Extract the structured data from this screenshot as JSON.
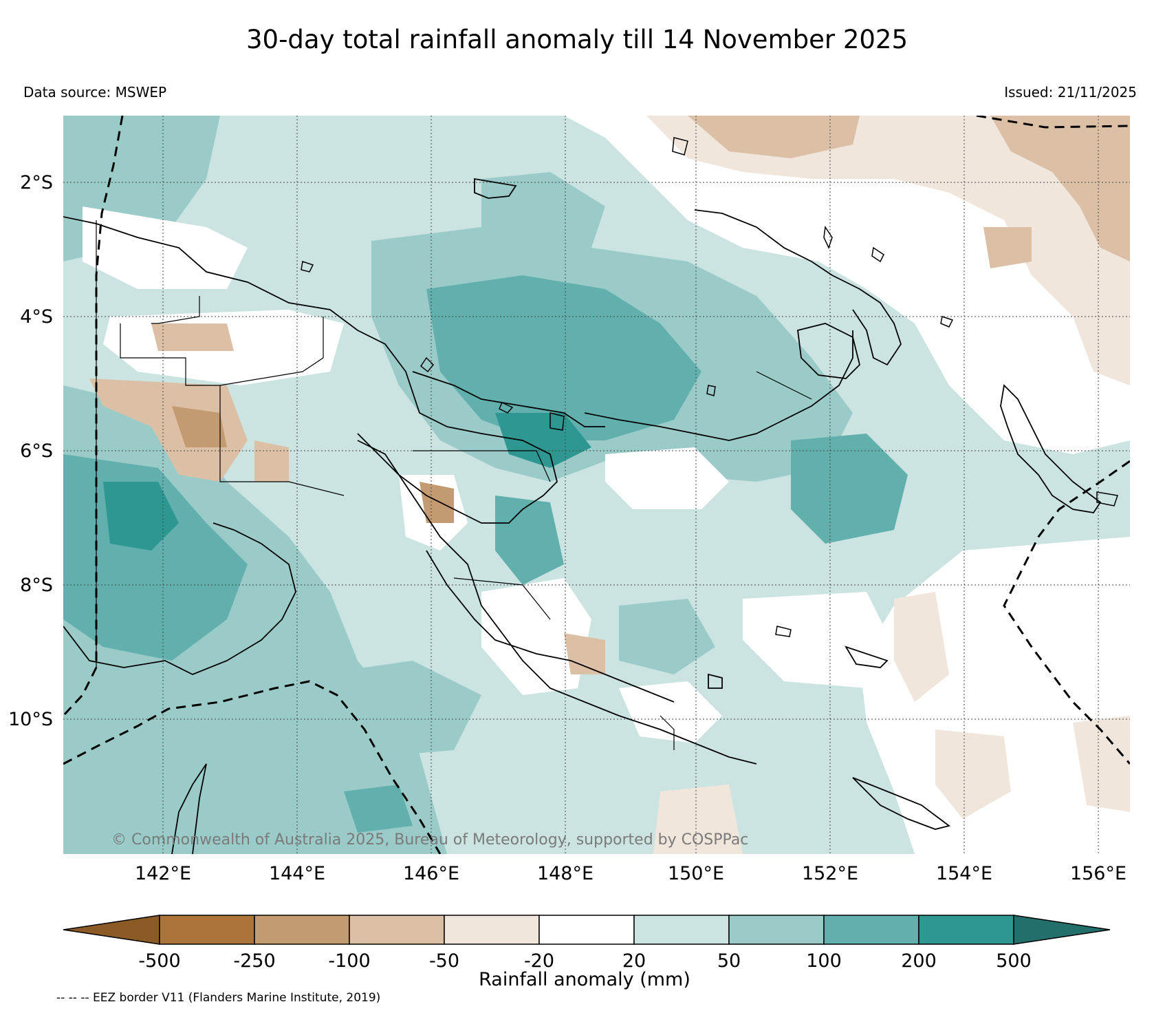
{
  "title": "30-day total rainfall anomaly till 14 November 2025",
  "source": "Data source: MSWEP",
  "issued": "Issued: 21/11/2025",
  "copyright": "© Commonwealth of Australia 2025, Bureau of Meteorology, supported by COSPPac",
  "footnote": "-- -- -- EEZ border V11 (Flanders Marine Institute, 2019)",
  "colorbar": {
    "label": "Rainfall anomaly (mm)",
    "ticks": [
      "-500",
      "-250",
      "-100",
      "-50",
      "-20",
      "20",
      "50",
      "100",
      "200",
      "500"
    ],
    "colors": [
      "#8c5a24",
      "#ac733b",
      "#c49a71",
      "#dcc0a6",
      "#f1e6dc",
      "#ffffff",
      "#cbe4e2",
      "#9acbc9",
      "#62b0ae",
      "#2f9792",
      "#236f6c"
    ]
  },
  "axes": {
    "lat_labels": [
      "2°S",
      "4°S",
      "6°S",
      "8°S",
      "10°S"
    ],
    "lon_labels": [
      "142°E",
      "144°E",
      "146°E",
      "148°E",
      "150°E",
      "152°E",
      "154°E",
      "156°E"
    ]
  }
}
